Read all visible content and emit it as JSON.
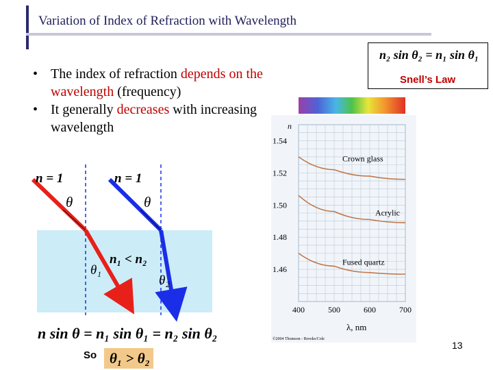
{
  "slide": {
    "title": "Variation of Index of Refraction with Wavelength",
    "page_number": "13"
  },
  "snell": {
    "equation": "n₂ sin θ₂ = n₁ sin θ₁",
    "label": "Snell’s Law"
  },
  "bullets": [
    {
      "pre": "The index of refraction ",
      "highlight": "depends on the wavelength",
      "post": " (frequency)"
    },
    {
      "pre": "It generally ",
      "highlight": "decreases",
      "post": " with increasing wavelength"
    }
  ],
  "diagram": {
    "left_n_label": "n = 1",
    "right_n_label": "n = 1",
    "theta": "θ",
    "theta1": "θ₁",
    "theta2": "θ₂",
    "inequality": "n₁ < n₂",
    "main_equation": "n sin θ = n₁ sin θ₁ = n₂ sin θ₂",
    "so_label": "So",
    "conclusion": "θ₁ > θ₂",
    "red_ray_color": "#e8201a",
    "blue_ray_color": "#1a2ee8"
  },
  "chart_data": {
    "type": "line",
    "ylabel": "n",
    "xlabel": "λ, nm",
    "x_ticks": [
      400,
      500,
      600,
      700
    ],
    "y_ticks": [
      "1.54",
      "1.52",
      "1.50",
      "1.48",
      "1.46"
    ],
    "xlim": [
      400,
      700
    ],
    "ylim": [
      1.44,
      1.55
    ],
    "series": [
      {
        "name": "Crown glass",
        "x": [
          400,
          500,
          600,
          700
        ],
        "values": [
          1.53,
          1.522,
          1.518,
          1.516
        ]
      },
      {
        "name": "Acrylic",
        "x": [
          400,
          500,
          600,
          700
        ],
        "values": [
          1.506,
          1.496,
          1.491,
          1.489
        ]
      },
      {
        "name": "Fused quartz",
        "x": [
          400,
          500,
          600,
          700
        ],
        "values": [
          1.47,
          1.462,
          1.458,
          1.457
        ]
      }
    ],
    "copyright": "©2004 Thomson - Brooks/Cole"
  }
}
